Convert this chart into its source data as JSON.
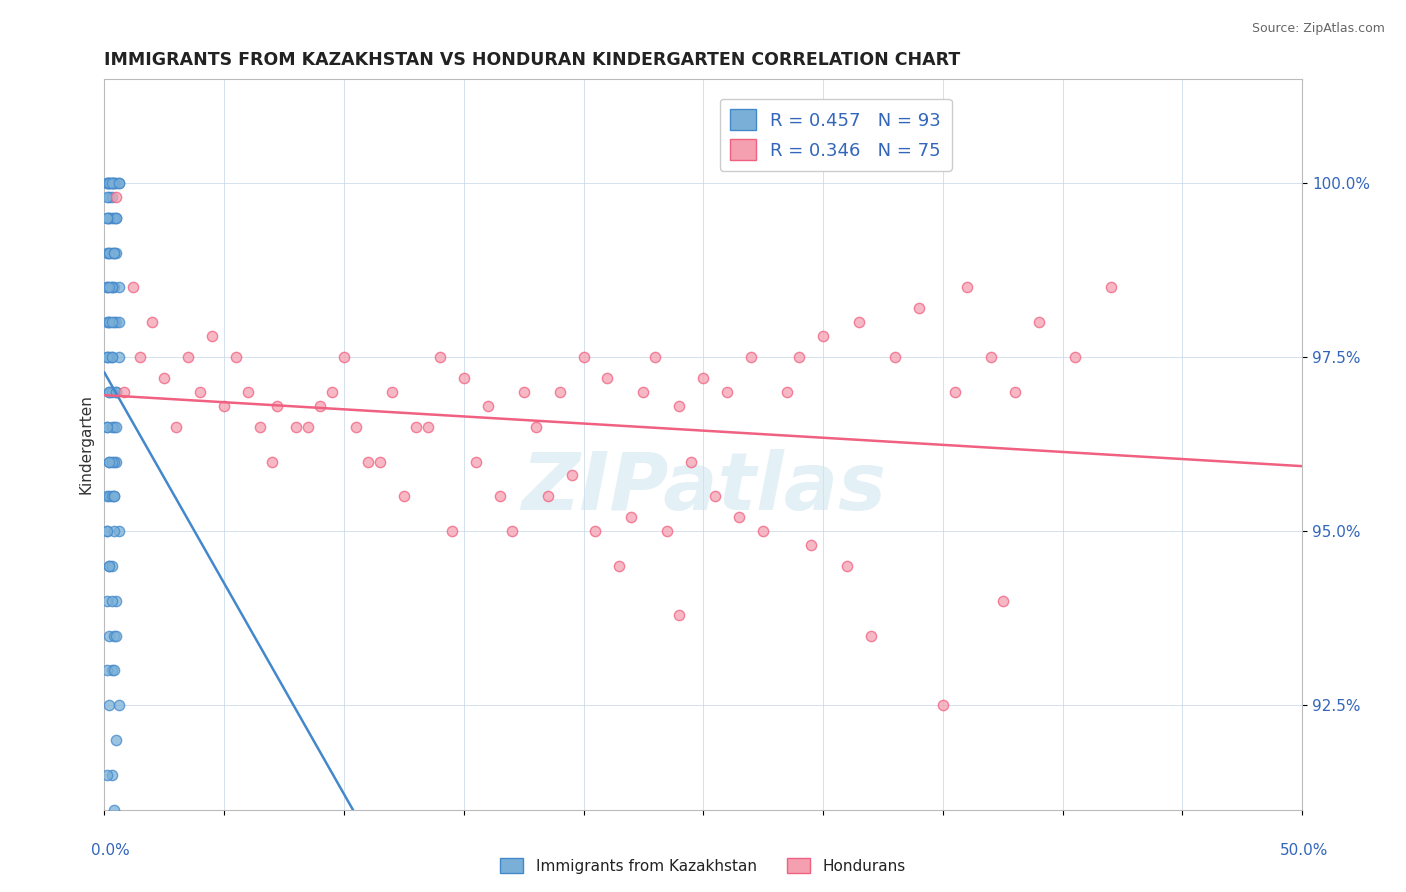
{
  "title": "IMMIGRANTS FROM KAZAKHSTAN VS HONDURAN KINDERGARTEN CORRELATION CHART",
  "source": "Source: ZipAtlas.com",
  "ylabel": "Kindergarten",
  "xmin": 0.0,
  "xmax": 50.0,
  "ymin": 91.0,
  "ymax": 101.5,
  "yticks": [
    92.5,
    95.0,
    97.5,
    100.0
  ],
  "ytick_labels": [
    "92.5%",
    "95.0%",
    "97.5%",
    "100.0%"
  ],
  "watermark": "ZIPatlas",
  "blue_color": "#7ab0d8",
  "pink_color": "#f4a0b0",
  "blue_edge_color": "#4488cc",
  "pink_edge_color": "#f06080",
  "blue_line_color": "#4488cc",
  "pink_line_color": "#f06080",
  "blue_scatter_x": [
    0.3,
    0.2,
    0.4,
    0.1,
    0.5,
    0.3,
    0.2,
    0.6,
    0.1,
    0.4,
    0.2,
    0.3,
    0.1,
    0.5,
    0.2,
    0.3,
    0.4,
    0.2,
    0.1,
    0.3,
    0.5,
    0.2,
    0.4,
    0.1,
    0.6,
    0.3,
    0.2,
    0.5,
    0.1,
    0.4,
    0.3,
    0.2,
    0.6,
    0.1,
    0.5,
    0.2,
    0.3,
    0.4,
    0.1,
    0.3,
    0.2,
    0.5,
    0.4,
    0.1,
    0.2,
    0.3,
    0.6,
    0.1,
    0.4,
    0.2,
    0.3,
    0.5,
    0.1,
    0.2,
    0.4,
    0.3,
    0.1,
    0.6,
    0.2,
    0.5,
    0.3,
    0.1,
    0.4,
    0.2,
    0.3,
    0.5,
    0.1,
    0.2,
    0.4,
    0.3,
    0.6,
    0.1,
    0.2,
    0.5,
    0.3,
    0.4,
    0.1,
    0.2,
    0.3,
    0.5,
    0.4,
    0.1,
    0.2,
    0.3,
    0.6,
    0.1,
    0.4,
    0.2,
    0.3,
    0.5,
    0.1,
    0.2,
    0.4
  ],
  "blue_scatter_y": [
    100.0,
    100.0,
    100.0,
    100.0,
    100.0,
    100.0,
    100.0,
    100.0,
    100.0,
    100.0,
    99.8,
    99.8,
    99.8,
    99.5,
    99.5,
    99.5,
    99.5,
    99.5,
    99.0,
    99.0,
    99.0,
    99.0,
    98.5,
    98.5,
    98.5,
    98.5,
    98.0,
    98.0,
    98.0,
    98.0,
    97.5,
    97.5,
    97.5,
    97.5,
    97.0,
    97.0,
    97.0,
    96.5,
    96.5,
    96.5,
    96.0,
    96.0,
    96.0,
    95.5,
    95.5,
    95.5,
    95.0,
    95.0,
    95.0,
    94.5,
    94.5,
    94.0,
    94.0,
    93.5,
    93.5,
    93.0,
    93.0,
    92.5,
    92.5,
    92.0,
    91.5,
    91.5,
    91.0,
    100.0,
    100.0,
    99.5,
    99.5,
    99.0,
    99.0,
    98.5,
    98.0,
    97.5,
    97.0,
    96.5,
    96.0,
    95.5,
    95.0,
    94.5,
    94.0,
    93.5,
    93.0,
    98.5,
    98.0,
    97.5,
    100.0,
    99.5,
    99.0,
    98.5,
    98.0,
    97.0,
    96.5,
    96.0,
    95.5
  ],
  "pink_scatter_x": [
    0.5,
    1.2,
    2.0,
    3.5,
    4.0,
    5.5,
    6.0,
    7.2,
    8.0,
    9.5,
    10.0,
    11.5,
    12.0,
    13.5,
    14.0,
    15.0,
    16.0,
    17.5,
    18.0,
    19.0,
    20.0,
    21.0,
    22.5,
    23.0,
    24.0,
    25.0,
    26.0,
    27.0,
    28.5,
    29.0,
    30.0,
    31.5,
    33.0,
    34.0,
    35.5,
    36.0,
    37.0,
    38.0,
    39.0,
    40.5,
    42.0,
    0.8,
    1.5,
    2.5,
    3.0,
    4.5,
    5.0,
    6.5,
    7.0,
    8.5,
    9.0,
    10.5,
    11.0,
    12.5,
    13.0,
    14.5,
    15.5,
    16.5,
    17.0,
    18.5,
    19.5,
    20.5,
    21.5,
    22.0,
    23.5,
    24.5,
    25.5,
    26.5,
    27.5,
    29.5,
    31.0,
    32.0,
    35.0,
    37.5,
    24.0
  ],
  "pink_scatter_y": [
    99.8,
    98.5,
    98.0,
    97.5,
    97.0,
    97.5,
    97.0,
    96.8,
    96.5,
    97.0,
    97.5,
    96.0,
    97.0,
    96.5,
    97.5,
    97.2,
    96.8,
    97.0,
    96.5,
    97.0,
    97.5,
    97.2,
    97.0,
    97.5,
    96.8,
    97.2,
    97.0,
    97.5,
    97.0,
    97.5,
    97.8,
    98.0,
    97.5,
    98.2,
    97.0,
    98.5,
    97.5,
    97.0,
    98.0,
    97.5,
    98.5,
    97.0,
    97.5,
    97.2,
    96.5,
    97.8,
    96.8,
    96.5,
    96.0,
    96.5,
    96.8,
    96.5,
    96.0,
    95.5,
    96.5,
    95.0,
    96.0,
    95.5,
    95.0,
    95.5,
    95.8,
    95.0,
    94.5,
    95.2,
    95.0,
    96.0,
    95.5,
    95.2,
    95.0,
    94.8,
    94.5,
    93.5,
    92.5,
    94.0,
    93.8
  ]
}
